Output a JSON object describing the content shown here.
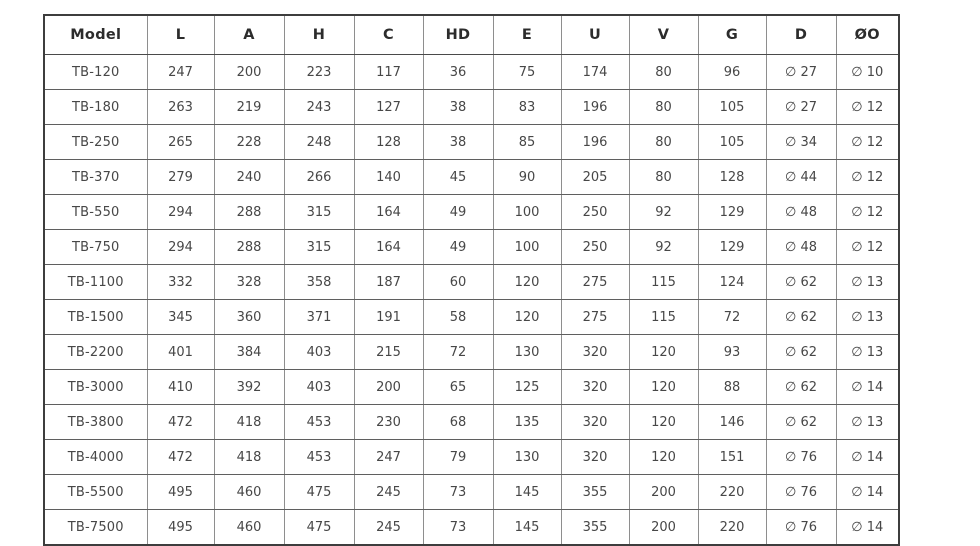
{
  "table": {
    "columns": [
      "Model",
      "L",
      "A",
      "H",
      "C",
      "HD",
      "E",
      "U",
      "V",
      "G",
      "D",
      "ØO"
    ],
    "rows": [
      [
        "TB-120",
        "247",
        "200",
        "223",
        "117",
        "36",
        "75",
        "174",
        "80",
        "96",
        "∅ 27",
        "∅ 10"
      ],
      [
        "TB-180",
        "263",
        "219",
        "243",
        "127",
        "38",
        "83",
        "196",
        "80",
        "105",
        "∅ 27",
        "∅ 12"
      ],
      [
        "TB-250",
        "265",
        "228",
        "248",
        "128",
        "38",
        "85",
        "196",
        "80",
        "105",
        "∅ 34",
        "∅ 12"
      ],
      [
        "TB-370",
        "279",
        "240",
        "266",
        "140",
        "45",
        "90",
        "205",
        "80",
        "128",
        "∅ 44",
        "∅ 12"
      ],
      [
        "TB-550",
        "294",
        "288",
        "315",
        "164",
        "49",
        "100",
        "250",
        "92",
        "129",
        "∅ 48",
        "∅ 12"
      ],
      [
        "TB-750",
        "294",
        "288",
        "315",
        "164",
        "49",
        "100",
        "250",
        "92",
        "129",
        "∅ 48",
        "∅ 12"
      ],
      [
        "TB-1100",
        "332",
        "328",
        "358",
        "187",
        "60",
        "120",
        "275",
        "115",
        "124",
        "∅ 62",
        "∅ 13"
      ],
      [
        "TB-1500",
        "345",
        "360",
        "371",
        "191",
        "58",
        "120",
        "275",
        "115",
        "72",
        "∅ 62",
        "∅ 13"
      ],
      [
        "TB-2200",
        "401",
        "384",
        "403",
        "215",
        "72",
        "130",
        "320",
        "120",
        "93",
        "∅ 62",
        "∅ 13"
      ],
      [
        "TB-3000",
        "410",
        "392",
        "403",
        "200",
        "65",
        "125",
        "320",
        "120",
        "88",
        "∅ 62",
        "∅ 14"
      ],
      [
        "TB-3800",
        "472",
        "418",
        "453",
        "230",
        "68",
        "135",
        "320",
        "120",
        "146",
        "∅ 62",
        "∅ 13"
      ],
      [
        "TB-4000",
        "472",
        "418",
        "453",
        "247",
        "79",
        "130",
        "320",
        "120",
        "151",
        "∅ 76",
        "∅ 14"
      ],
      [
        "TB-5500",
        "495",
        "460",
        "475",
        "245",
        "73",
        "145",
        "355",
        "200",
        "220",
        "∅ 76",
        "∅ 14"
      ],
      [
        "TB-7500",
        "495",
        "460",
        "475",
        "245",
        "73",
        "145",
        "355",
        "200",
        "220",
        "∅ 76",
        "∅ 14"
      ]
    ],
    "colors": {
      "outer_border": "#3d3d3d",
      "vertical_rule": "#8e8e8e",
      "horizontal_rule": "#5f5f5f",
      "header_text": "#2c2c2c",
      "cell_text": "#474747",
      "background": "#ffffff"
    }
  }
}
